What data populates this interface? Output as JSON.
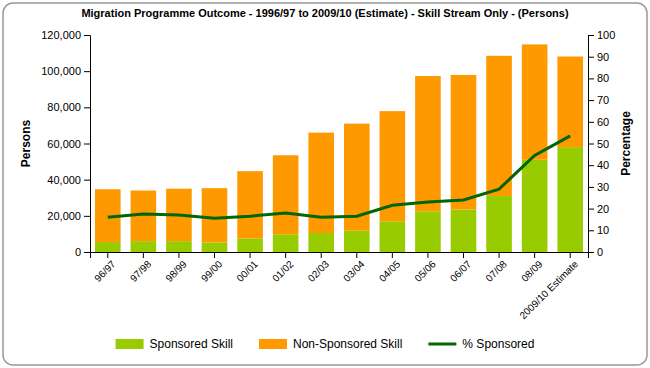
{
  "chart_data": {
    "type": "bar",
    "title": "Migration Programme Outcome - 1996/97 to 2009/10 (Estimate) - Skill Stream Only - (Persons)",
    "ylabel": "Persons",
    "y2label": "Percentage",
    "categories": [
      "96/97",
      "97/98",
      "98/99",
      "99/00",
      "00/01",
      "01/02",
      "02/03",
      "03/04",
      "04/05",
      "05/06",
      "06/07",
      "07/08",
      "08/09",
      "2009/10 Estimate"
    ],
    "series": [
      {
        "name": "Sponsored Skill",
        "color": "#99cc00",
        "type": "bar",
        "values": [
          5500,
          6000,
          6000,
          5300,
          7500,
          9800,
          10500,
          11800,
          17000,
          22500,
          23500,
          31000,
          51000,
          58000
        ]
      },
      {
        "name": "Non-Sponsored Skill",
        "color": "#ff9900",
        "type": "bar",
        "values": [
          29200,
          28000,
          29000,
          30000,
          37200,
          43700,
          55500,
          59200,
          60900,
          74800,
          74400,
          77500,
          63800,
          50100
        ]
      },
      {
        "name": "% Sponsored",
        "color": "#006600",
        "type": "line",
        "axis": "y2",
        "values": [
          16,
          17.5,
          17,
          15.5,
          16.5,
          18,
          16,
          16.5,
          21.5,
          23,
          24,
          29,
          44.5,
          53.5
        ]
      }
    ],
    "stacked": true,
    "grid": false,
    "legend": "bottom",
    "ylim": [
      0,
      120000
    ],
    "yticks": [
      0,
      {
        "value": 20000,
        "label": "20,000"
      },
      {
        "value": 40000,
        "label": "40,000"
      },
      {
        "value": 60000,
        "label": "60,000"
      },
      {
        "value": 80000,
        "label": "80,000"
      },
      {
        "value": 100000,
        "label": "100,000"
      },
      {
        "value": 120000,
        "label": "120,000"
      }
    ],
    "y2lim": [
      0,
      100
    ],
    "y2ticks": [
      0,
      10,
      20,
      30,
      40,
      50,
      60,
      70,
      80,
      90,
      100
    ]
  }
}
